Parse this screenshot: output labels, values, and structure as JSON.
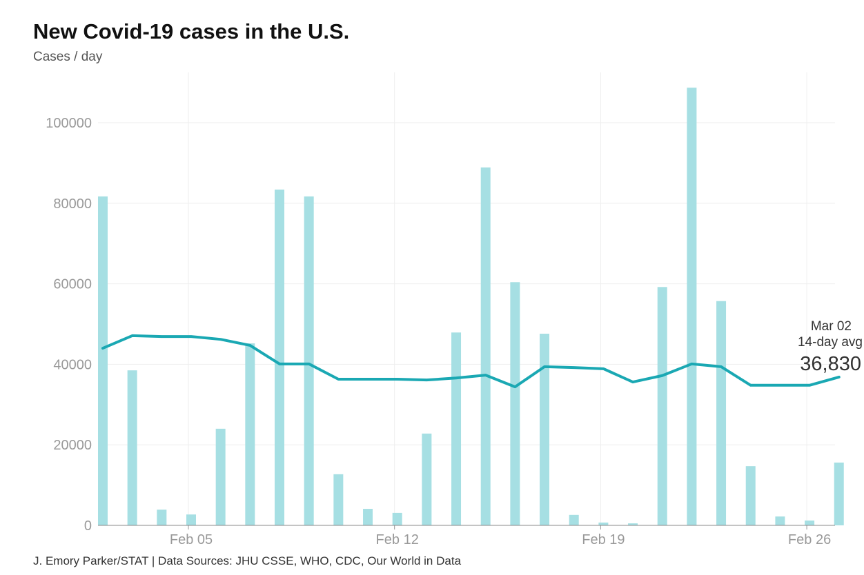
{
  "chart_data": {
    "type": "bar",
    "title": "New Covid-19 cases in the U.S.",
    "subtitle": "Cases / day",
    "xlabel": "",
    "ylabel": "Cases / day",
    "ylim": [
      0,
      110000
    ],
    "yticks": [
      0,
      20000,
      40000,
      60000,
      80000,
      100000
    ],
    "ytick_labels": [
      "0",
      "20000",
      "40000",
      "60000",
      "80000",
      "100000"
    ],
    "xtick_labels": [
      {
        "day": 5,
        "label": "Feb 05"
      },
      {
        "day": 12,
        "label": "Feb 12"
      },
      {
        "day": 19,
        "label": "Feb 19"
      },
      {
        "day": 26,
        "label": "Feb 26"
      }
    ],
    "grid": true,
    "days": [
      2,
      3,
      4,
      5,
      6,
      7,
      8,
      9,
      10,
      11,
      12,
      13,
      14,
      15,
      16,
      17,
      18,
      19,
      20,
      21,
      22,
      23,
      24,
      25,
      26,
      27
    ],
    "series": [
      {
        "name": "Daily new cases",
        "type": "bar",
        "color": "#a6dfe3",
        "values": [
          81700,
          38500,
          3900,
          2700,
          24000,
          45200,
          83400,
          81700,
          12700,
          4100,
          3100,
          22800,
          47900,
          88900,
          60400,
          47600,
          2600,
          700,
          500,
          59200,
          108700,
          55700,
          14700,
          2200,
          1200,
          15600
        ]
      },
      {
        "name": "14-day avg",
        "type": "line",
        "color": "#1aa8b3",
        "values": [
          44000,
          47100,
          46900,
          46900,
          46200,
          44700,
          40100,
          40100,
          36300,
          36300,
          36300,
          36100,
          36600,
          37300,
          34400,
          39400,
          39200,
          38900,
          35600,
          37200,
          40100,
          39400,
          34800,
          34800,
          34800,
          36830
        ]
      }
    ],
    "annotation": {
      "date": "Mar 02",
      "label": "14-day avg",
      "value": "36,830"
    },
    "source": "J. Emory Parker/STAT | Data Sources: JHU CSSE, WHO, CDC, Our World in Data"
  }
}
